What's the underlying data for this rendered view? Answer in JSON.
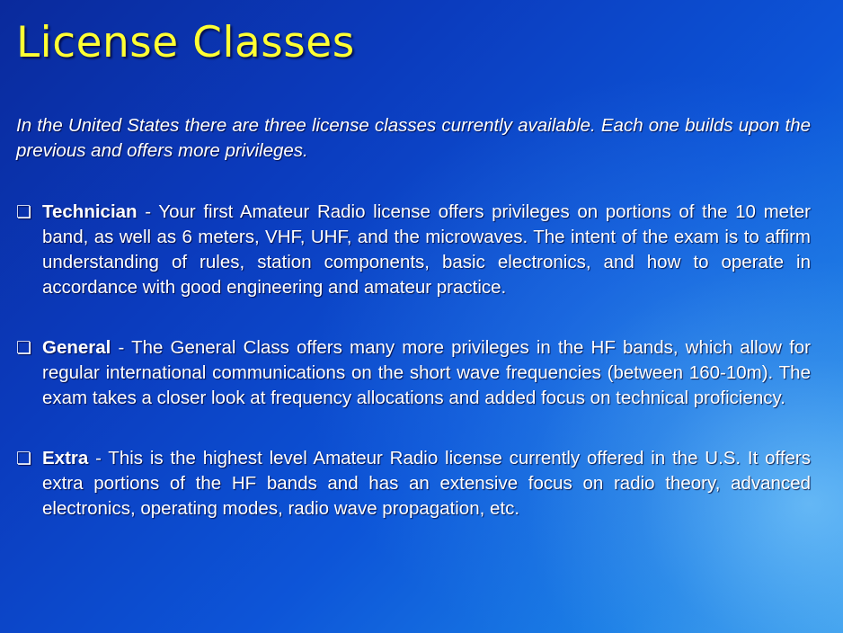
{
  "slide": {
    "title": "License Classes",
    "intro": "In the United States there are three license classes currently available.  Each one builds upon the previous and offers more privileges.",
    "bullet_glyph": "❏",
    "items": [
      {
        "name": "Technician",
        "description": " - Your first Amateur Radio license offers privileges on portions of the 10 meter band, as well as 6 meters, VHF, UHF, and the microwaves.  The intent of the exam is to affirm understanding of rules, station components,  basic electronics, and how to operate in accordance with good engineering and amateur practice."
      },
      {
        "name": "General",
        "description": " - The General Class offers many more privileges in the HF bands, which allow for regular international communications on the short wave frequencies (between 160-10m).  The exam takes a closer look at frequency allocations and added focus on technical proficiency."
      },
      {
        "name": "Extra",
        "description": " - This is the highest level Amateur Radio license currently offered in the U.S.  It offers extra portions of the HF bands and has an extensive focus on radio theory, advanced electronics, operating modes, radio wave propagation, etc."
      }
    ],
    "colors": {
      "title": "#ffff33",
      "text": "#ffffff",
      "background_dark": "#0a2a9c",
      "background_light": "#3aa0ee"
    }
  }
}
